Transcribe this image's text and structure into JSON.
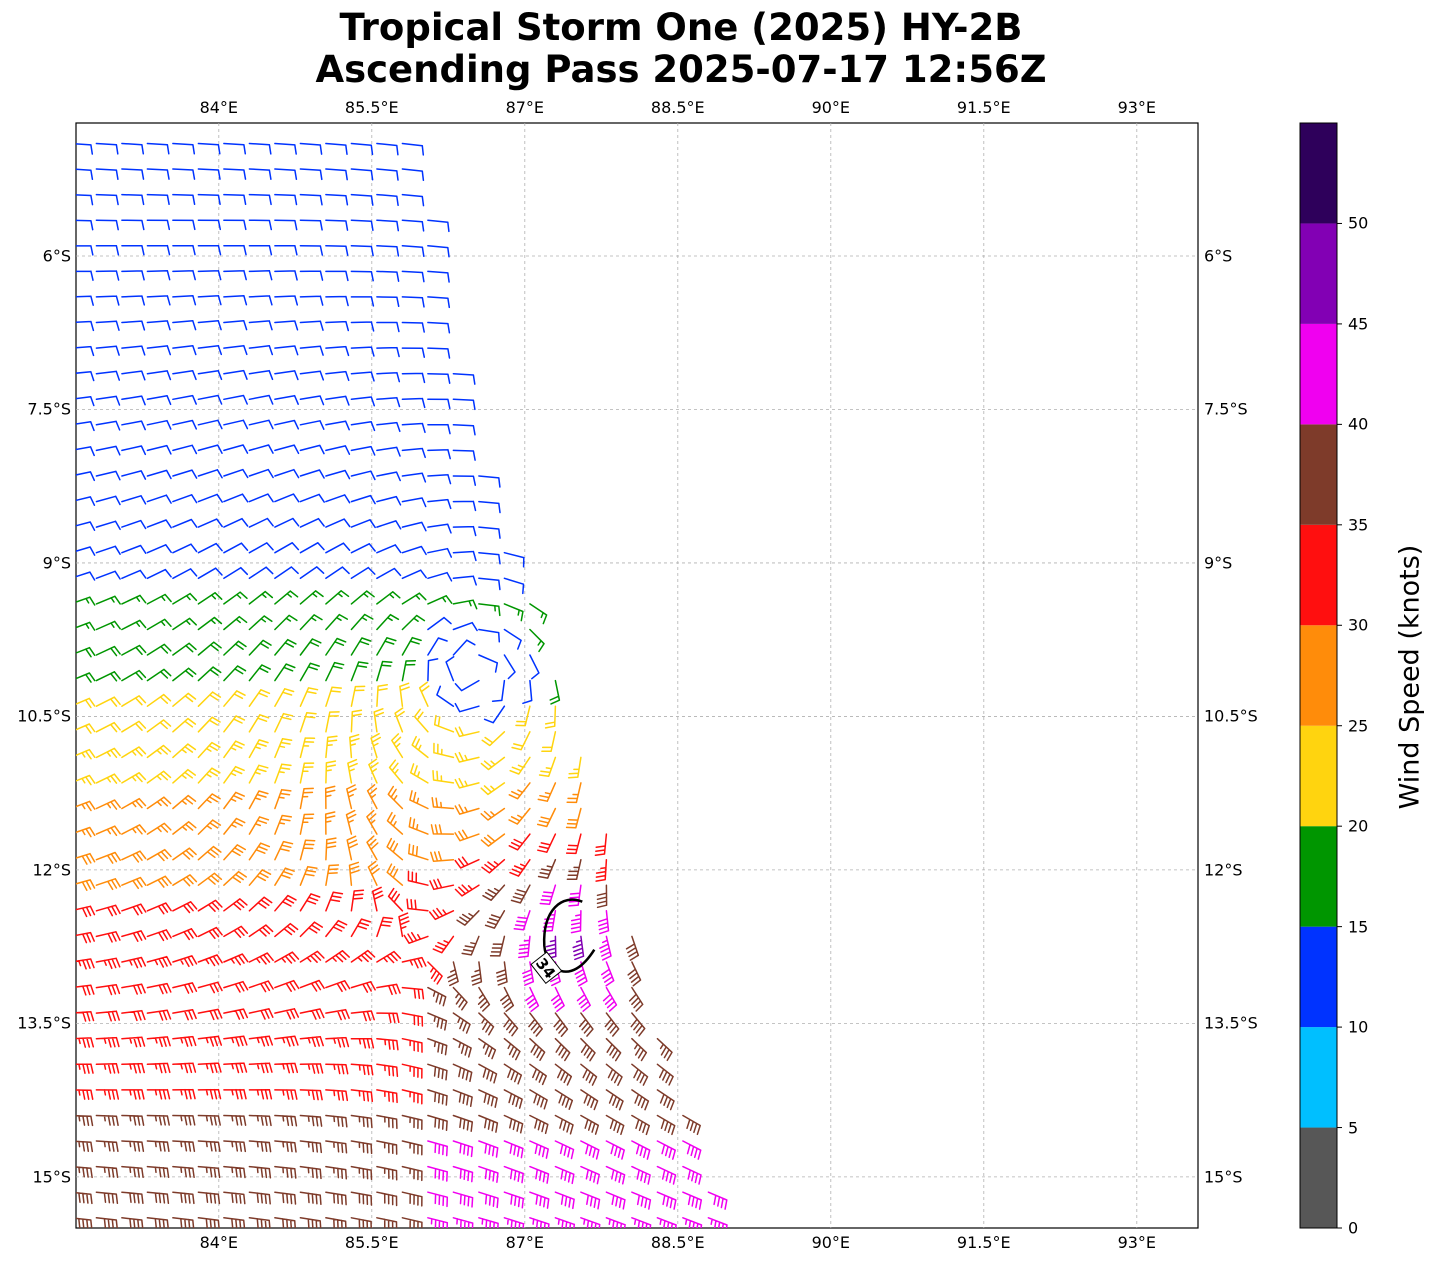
{
  "title": {
    "line1": "Tropical Storm One (2025) HY-2B",
    "line2": "Ascending Pass 2025-07-17 12:56Z"
  },
  "map": {
    "lon_range": [
      82.6,
      93.6
    ],
    "lat_range": [
      -4.7,
      -15.5
    ],
    "lon_ticks": [
      {
        "value": 84.0,
        "label": "84°E"
      },
      {
        "value": 85.5,
        "label": "85.5°E"
      },
      {
        "value": 87.0,
        "label": "87°E"
      },
      {
        "value": 88.5,
        "label": "88.5°E"
      },
      {
        "value": 90.0,
        "label": "90°E"
      },
      {
        "value": 91.5,
        "label": "91.5°E"
      },
      {
        "value": 93.0,
        "label": "93°E"
      }
    ],
    "lat_ticks": [
      {
        "value": -6.0,
        "label": "6°S"
      },
      {
        "value": -7.5,
        "label": "7.5°S"
      },
      {
        "value": -9.0,
        "label": "9°S"
      },
      {
        "value": -10.5,
        "label": "10.5°S"
      },
      {
        "value": -12.0,
        "label": "12°S"
      },
      {
        "value": -13.5,
        "label": "13.5°S"
      },
      {
        "value": -15.0,
        "label": "15°S"
      }
    ],
    "gridlines": true,
    "wind_barbs": "HY-2B scatterometer wind barbs colored by speed",
    "swath_east_edge": [
      {
        "lat": -4.8,
        "lon": 85.9
      },
      {
        "lat": -7.5,
        "lon": 86.4
      },
      {
        "lat": -9.0,
        "lon": 86.9
      },
      {
        "lat": -10.5,
        "lon": 87.5
      },
      {
        "lat": -12.0,
        "lon": 87.9
      },
      {
        "lat": -13.5,
        "lon": 88.3
      },
      {
        "lat": -15.4,
        "lon": 88.9
      }
    ],
    "circulation_center": {
      "lat": -10.0,
      "lon": 86.5
    },
    "contour": {
      "label": "34",
      "color": "#000000"
    }
  },
  "colorbar": {
    "label": "Wind Speed (knots)",
    "ticks": [
      "0",
      "5",
      "10",
      "15",
      "20",
      "25",
      "30",
      "35",
      "40",
      "45",
      "50"
    ],
    "bins": [
      {
        "min": 0,
        "max": 5,
        "color": "#575757"
      },
      {
        "min": 5,
        "max": 10,
        "color": "#00bfff"
      },
      {
        "min": 10,
        "max": 15,
        "color": "#0033ff"
      },
      {
        "min": 15,
        "max": 20,
        "color": "#009600"
      },
      {
        "min": 20,
        "max": 25,
        "color": "#ffd40f"
      },
      {
        "min": 25,
        "max": 30,
        "color": "#ff8c0a"
      },
      {
        "min": 30,
        "max": 35,
        "color": "#ff0f0f"
      },
      {
        "min": 35,
        "max": 40,
        "color": "#7e3b2a"
      },
      {
        "min": 40,
        "max": 45,
        "color": "#f000f0"
      },
      {
        "min": 45,
        "max": 50,
        "color": "#8200b4"
      },
      {
        "min": 50,
        "max": 55,
        "color": "#2e005b"
      }
    ]
  }
}
